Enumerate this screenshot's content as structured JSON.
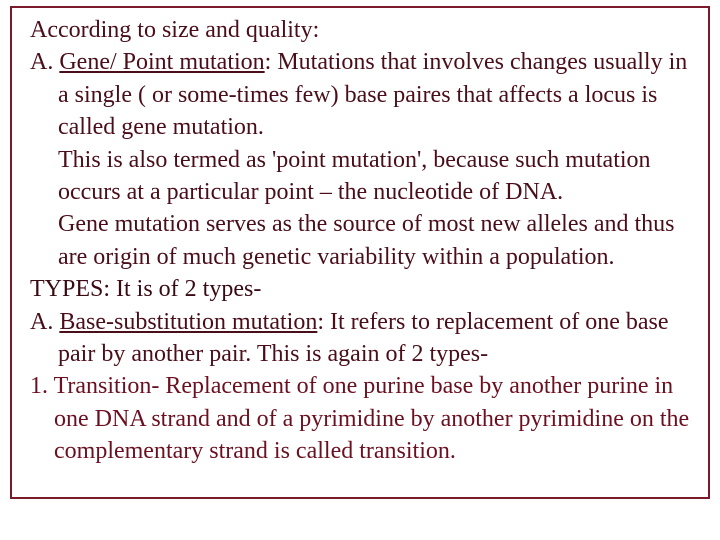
{
  "frame": {
    "border_color": "#7a1a2b"
  },
  "text": {
    "color_main": "#4a0e1a",
    "color_types": "#3a0a14",
    "color_transition": "#6b1020",
    "line1": "According to size and quality:",
    "line2a": "A. ",
    "line2b": "Gene/ Point mutation",
    "line2c": ": Mutations that involves changes usually in a single ( or some-times few) base paires that affects a locus is called gene mutation.",
    "line3": " This is also termed as 'point mutation', because such mutation occurs at a particular point – the nucleotide of DNA.",
    "line4": " Gene mutation serves as the source of most new alleles and thus are origin of much genetic variability within a population.",
    "line5": "TYPES: It is of 2 types-",
    "line6a": "A.  ",
    "line6b": "Base-substitution mutation",
    "line6c": ": It refers to replacement of one base pair by another pair. This is again of 2 types-",
    "line7": "1. Transition- Replacement of one purine base by another purine in one DNA strand and of a pyrimidine by another pyrimidine on the complementary strand is called transition."
  }
}
